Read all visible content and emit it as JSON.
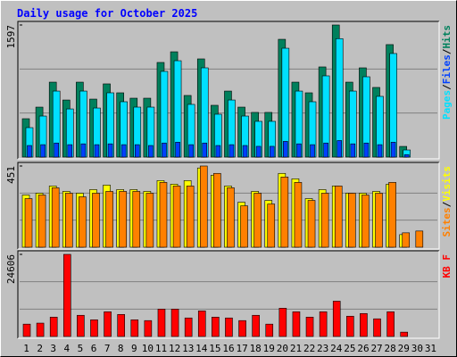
{
  "title": "Daily usage for October 2025",
  "separator": "/",
  "weekends": [
    4,
    5,
    11,
    12,
    18,
    19,
    25,
    26
  ],
  "weekend_color": "#008040",
  "chart_data": [
    {
      "type": "bar",
      "ylim": [
        0,
        1597
      ],
      "yticks": [
        1597
      ],
      "legend_order": [
        1,
        2,
        0
      ],
      "series": [
        {
          "name": "Hits",
          "color": "#00805c",
          "values": [
            464,
            604,
            906,
            690,
            906,
            701,
            885,
            777,
            712,
            712,
            1144,
            1273,
            745,
            1187,
            626,
            798,
            604,
            540,
            540,
            1424,
            906,
            777,
            1090,
            1597,
            906,
            1079,
            842,
            1360,
            129,
            0,
            0
          ]
        },
        {
          "name": "Pages",
          "color": "#00e0ff",
          "values": [
            356,
            496,
            798,
            582,
            798,
            593,
            777,
            669,
            604,
            604,
            1036,
            1165,
            637,
            1079,
            518,
            690,
            496,
            432,
            432,
            1316,
            798,
            669,
            982,
            1432,
            798,
            971,
            734,
            1252,
            86,
            0,
            0
          ]
        },
        {
          "name": "Files",
          "color": "#0040ff",
          "values": [
            140,
            150,
            170,
            150,
            160,
            150,
            160,
            150,
            150,
            140,
            170,
            180,
            150,
            170,
            140,
            150,
            140,
            130,
            130,
            190,
            160,
            150,
            170,
            200,
            160,
            170,
            150,
            180,
            30,
            0,
            0
          ]
        }
      ]
    },
    {
      "type": "bar",
      "ylim": [
        0,
        451
      ],
      "yticks": [
        451
      ],
      "legend_order": [
        1,
        0
      ],
      "series": [
        {
          "name": "Visits",
          "color": "#ffff00",
          "values": [
            290,
            300,
            340,
            310,
            300,
            320,
            345,
            320,
            320,
            310,
            370,
            350,
            370,
            440,
            400,
            340,
            250,
            310,
            260,
            410,
            380,
            270,
            320,
            340,
            300,
            300,
            310,
            350,
            70,
            0,
            0
          ]
        },
        {
          "name": "Sites",
          "color": "#ff8000",
          "values": [
            270,
            290,
            330,
            300,
            280,
            300,
            310,
            310,
            310,
            300,
            360,
            340,
            340,
            451,
            410,
            330,
            230,
            300,
            240,
            390,
            360,
            260,
            300,
            340,
            300,
            290,
            300,
            360,
            80,
            90,
            0
          ]
        }
      ]
    },
    {
      "type": "bar",
      "ylim": [
        0,
        24606
      ],
      "yticks": [
        24606
      ],
      "legend_order": [
        0
      ],
      "categories": [
        "1",
        "2",
        "3",
        "4",
        "5",
        "6",
        "7",
        "8",
        "9",
        "10",
        "11",
        "12",
        "13",
        "14",
        "15",
        "16",
        "17",
        "18",
        "19",
        "20",
        "21",
        "22",
        "23",
        "24",
        "25",
        "26",
        "27",
        "28",
        "29",
        "30",
        "31"
      ],
      "series": [
        {
          "name": "KB F",
          "color": "#ff0000",
          "values": [
            3700,
            4000,
            5800,
            24606,
            6350,
            5000,
            7400,
            6600,
            5000,
            4760,
            8200,
            8200,
            5550,
            7670,
            5800,
            5550,
            4760,
            6350,
            3700,
            8470,
            7400,
            5800,
            7400,
            10580,
            6080,
            6880,
            5290,
            7400,
            1300,
            0,
            0
          ]
        }
      ]
    }
  ]
}
